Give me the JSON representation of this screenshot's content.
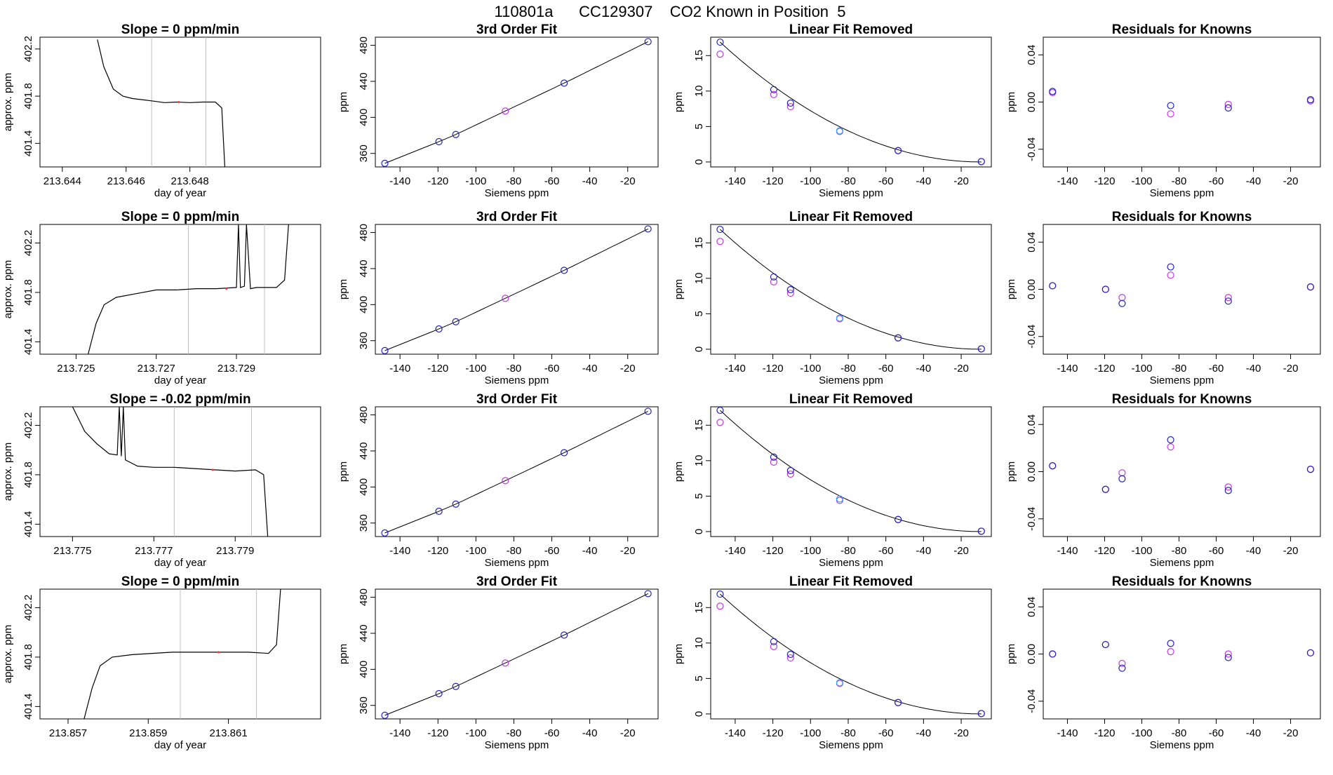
{
  "figure_title": "110801a      CC129307    CO2 Known in Position  5",
  "colors": {
    "line": "#000000",
    "vline": "#bebebe",
    "blue": "#2222bb",
    "magenta": "#c038e0",
    "cyan": "#2aa3ff",
    "pink": "#ff3333"
  },
  "chart_data": [
    {
      "type": "line",
      "title": "Slope =  0  ppm/min",
      "xlabel": "day of year",
      "ylabel": "approx. ppm",
      "xlim": [
        213.6433,
        213.6521
      ],
      "ylim": [
        401.2,
        402.3
      ],
      "xticks": [
        "213.644",
        "213.646",
        "213.648"
      ],
      "yticks": [
        "401.4",
        "401.8",
        "402.2"
      ],
      "vlines": [
        213.6468,
        213.6485
      ],
      "x": [
        213.6451,
        213.6453,
        213.6456,
        213.6459,
        213.6462,
        213.6465,
        213.6468,
        213.6472,
        213.6476,
        213.648,
        213.6484,
        213.6488,
        213.649,
        213.6491
      ],
      "y": [
        402.28,
        402.05,
        401.86,
        401.8,
        401.78,
        401.77,
        401.76,
        401.745,
        401.75,
        401.745,
        401.75,
        401.75,
        401.7,
        401.18
      ]
    },
    {
      "type": "scatter",
      "title": "3rd Order Fit",
      "xlabel": "Siemens ppm",
      "ylabel": "ppm",
      "xlim": [
        -153,
        -4
      ],
      "ylim": [
        345,
        489
      ],
      "xticks": [
        "-140",
        "-120",
        "-100",
        "-80",
        "-60",
        "-40",
        "-20"
      ],
      "yticks": [
        "360",
        "400",
        "440",
        "480"
      ],
      "x": [
        -148,
        -119.5,
        -110.6,
        -84.5,
        -53.5,
        -9.3
      ],
      "y": [
        349,
        373,
        381,
        407,
        438,
        484
      ]
    },
    {
      "type": "scatter",
      "title": "Linear Fit Removed",
      "xlabel": "Siemens ppm",
      "ylabel": "ppm",
      "xlim": [
        -153,
        -4
      ],
      "ylim": [
        -0.7,
        17.6
      ],
      "xticks": [
        "-140",
        "-120",
        "-100",
        "-80",
        "-60",
        "-40",
        "-20"
      ],
      "yticks": [
        "0",
        "5",
        "10",
        "15"
      ],
      "x": [
        -148,
        -119.5,
        -110.6,
        -84.5,
        -53.5,
        -9.3
      ],
      "y_blue": [
        16.9,
        10.2,
        8.3,
        4.4,
        1.6,
        0.05
      ],
      "y_magenta": [
        15.2,
        9.5,
        7.8,
        4.3,
        1.6,
        0.05
      ]
    },
    {
      "type": "scatter",
      "title": "Residuals for Knowns",
      "xlabel": "Siemens ppm",
      "ylabel": "ppm",
      "xlim": [
        -153,
        -4
      ],
      "ylim": [
        -0.055,
        0.055
      ],
      "xticks": [
        "-140",
        "-120",
        "-100",
        "-80",
        "-60",
        "-40",
        "-20"
      ],
      "yticks": [
        "-0.04",
        "0.00",
        "0.04"
      ],
      "x": [
        -148,
        -84.5,
        -53.5,
        -9.3
      ],
      "y_blue": [
        0.009,
        -0.003,
        -0.005,
        0.002
      ],
      "y_magenta": [
        0.008,
        -0.01,
        -0.002,
        0.001
      ]
    },
    {
      "type": "line",
      "title": "Slope =  0  ppm/min",
      "xlabel": "day of year",
      "ylabel": "approx. ppm",
      "xlim": [
        213.7241,
        213.7311
      ],
      "ylim": [
        401.3,
        402.35
      ],
      "xticks": [
        "213.725",
        "213.727",
        "213.729"
      ],
      "yticks": [
        "401.4",
        "401.8",
        "402.2"
      ],
      "vlines": [
        213.7278,
        213.7297
      ],
      "x": [
        213.7253,
        213.7255,
        213.7257,
        213.726,
        213.7265,
        213.727,
        213.7275,
        213.728,
        213.7285,
        213.729,
        213.72905,
        213.7291,
        213.7292,
        213.72925,
        213.72935,
        213.7295,
        213.73,
        213.7302,
        213.7303
      ],
      "y": [
        401.3,
        401.55,
        401.7,
        401.76,
        401.79,
        401.82,
        401.82,
        401.83,
        401.83,
        401.84,
        402.35,
        401.84,
        401.85,
        402.35,
        401.83,
        401.84,
        401.84,
        401.9,
        402.35
      ]
    },
    {
      "type": "scatter",
      "title": "3rd Order Fit",
      "xlabel": "Siemens ppm",
      "ylabel": "ppm",
      "xlim": [
        -153,
        -4
      ],
      "ylim": [
        345,
        489
      ],
      "xticks": [
        "-140",
        "-120",
        "-100",
        "-80",
        "-60",
        "-40",
        "-20"
      ],
      "yticks": [
        "360",
        "400",
        "440",
        "480"
      ],
      "x": [
        -148,
        -119.5,
        -110.6,
        -84.5,
        -53.5,
        -9.3
      ],
      "y": [
        349,
        373,
        381,
        407,
        438,
        484
      ]
    },
    {
      "type": "scatter",
      "title": "Linear Fit Removed",
      "xlabel": "Siemens ppm",
      "ylabel": "ppm",
      "xlim": [
        -153,
        -4
      ],
      "ylim": [
        -0.7,
        17.6
      ],
      "xticks": [
        "-140",
        "-120",
        "-100",
        "-80",
        "-60",
        "-40",
        "-20"
      ],
      "yticks": [
        "0",
        "5",
        "10",
        "15"
      ],
      "x": [
        -148,
        -119.5,
        -110.6,
        -84.5,
        -53.5,
        -9.3
      ],
      "y_blue": [
        16.9,
        10.2,
        8.4,
        4.4,
        1.6,
        0.05
      ],
      "y_magenta": [
        15.2,
        9.5,
        7.9,
        4.3,
        1.6,
        0.05
      ]
    },
    {
      "type": "scatter",
      "title": "Residuals for Knowns",
      "xlabel": "Siemens ppm",
      "ylabel": "ppm",
      "xlim": [
        -153,
        -4
      ],
      "ylim": [
        -0.055,
        0.055
      ],
      "xticks": [
        "-140",
        "-120",
        "-100",
        "-80",
        "-60",
        "-40",
        "-20"
      ],
      "yticks": [
        "-0.04",
        "0.00",
        "0.04"
      ],
      "x": [
        -148,
        -119.5,
        -110.6,
        -84.5,
        -53.5,
        -9.3
      ],
      "y_blue": [
        0.003,
        0.0,
        -0.012,
        0.019,
        -0.01,
        0.002
      ],
      "y_magenta": [
        0.003,
        0.0,
        -0.007,
        0.012,
        -0.007,
        0.002
      ]
    },
    {
      "type": "line",
      "title": "Slope =  -0.02  ppm/min",
      "xlabel": "day of year",
      "ylabel": "approx. ppm",
      "xlim": [
        213.7742,
        213.7811
      ],
      "ylim": [
        401.3,
        402.35
      ],
      "xticks": [
        "213.775",
        "213.777",
        "213.779"
      ],
      "yticks": [
        "401.4",
        "401.8",
        "402.2"
      ],
      "vlines": [
        213.7775,
        213.7794
      ],
      "x": [
        213.775,
        213.7753,
        213.7756,
        213.7759,
        213.7761,
        213.77615,
        213.7762,
        213.77625,
        213.7763,
        213.7766,
        213.777,
        213.7775,
        213.778,
        213.7785,
        213.779,
        213.7795,
        213.7797,
        213.7798
      ],
      "y": [
        402.35,
        402.15,
        402.05,
        401.97,
        401.96,
        402.35,
        401.95,
        402.35,
        401.92,
        401.87,
        401.86,
        401.86,
        401.85,
        401.84,
        401.83,
        401.84,
        401.8,
        401.3
      ]
    },
    {
      "type": "scatter",
      "title": "3rd Order Fit",
      "xlabel": "Siemens ppm",
      "ylabel": "ppm",
      "xlim": [
        -153,
        -4
      ],
      "ylim": [
        345,
        489
      ],
      "xticks": [
        "-140",
        "-120",
        "-100",
        "-80",
        "-60",
        "-40",
        "-20"
      ],
      "yticks": [
        "360",
        "400",
        "440",
        "480"
      ],
      "x": [
        -148,
        -119.5,
        -110.6,
        -84.5,
        -53.5,
        -9.3
      ],
      "y": [
        349,
        373,
        381,
        407,
        438,
        484
      ]
    },
    {
      "type": "scatter",
      "title": "Linear Fit Removed",
      "xlabel": "Siemens ppm",
      "ylabel": "ppm",
      "xlim": [
        -153,
        -4
      ],
      "ylim": [
        -0.7,
        17.6
      ],
      "xticks": [
        "-140",
        "-120",
        "-100",
        "-80",
        "-60",
        "-40",
        "-20"
      ],
      "yticks": [
        "0",
        "5",
        "10",
        "15"
      ],
      "x": [
        -148,
        -119.5,
        -110.6,
        -84.5,
        -53.5,
        -9.3
      ],
      "y_blue": [
        17.1,
        10.5,
        8.6,
        4.6,
        1.7,
        0.05
      ],
      "y_magenta": [
        15.4,
        9.8,
        8.1,
        4.4,
        1.7,
        0.05
      ]
    },
    {
      "type": "scatter",
      "title": "Residuals for Knowns",
      "xlabel": "Siemens ppm",
      "ylabel": "ppm",
      "xlim": [
        -153,
        -4
      ],
      "ylim": [
        -0.055,
        0.055
      ],
      "xticks": [
        "-140",
        "-120",
        "-100",
        "-80",
        "-60",
        "-40",
        "-20"
      ],
      "yticks": [
        "-0.04",
        "0.00",
        "0.04"
      ],
      "x": [
        -148,
        -119.5,
        -110.6,
        -84.5,
        -53.5,
        -9.3
      ],
      "y_blue": [
        0.005,
        -0.015,
        -0.006,
        0.027,
        -0.016,
        0.002
      ],
      "y_magenta": [
        0.005,
        -0.015,
        -0.001,
        0.021,
        -0.013,
        0.002
      ]
    },
    {
      "type": "line",
      "title": "Slope =  0  ppm/min",
      "xlabel": "day of year",
      "ylabel": "approx. ppm",
      "xlim": [
        213.8563,
        213.8633
      ],
      "ylim": [
        401.3,
        402.35
      ],
      "xticks": [
        "213.857",
        "213.859",
        "213.861"
      ],
      "yticks": [
        "401.4",
        "401.8",
        "402.2"
      ],
      "vlines": [
        213.8598,
        213.8617
      ],
      "x": [
        213.8574,
        213.8576,
        213.8578,
        213.8581,
        213.8586,
        213.8591,
        213.8596,
        213.86,
        213.8605,
        213.861,
        213.8615,
        213.862,
        213.8622,
        213.8623
      ],
      "y": [
        401.3,
        401.55,
        401.73,
        401.8,
        401.82,
        401.83,
        401.84,
        401.84,
        401.84,
        401.84,
        401.84,
        401.83,
        401.9,
        402.35
      ]
    },
    {
      "type": "scatter",
      "title": "3rd Order Fit",
      "xlabel": "Siemens ppm",
      "ylabel": "ppm",
      "xlim": [
        -153,
        -4
      ],
      "ylim": [
        345,
        489
      ],
      "xticks": [
        "-140",
        "-120",
        "-100",
        "-80",
        "-60",
        "-40",
        "-20"
      ],
      "yticks": [
        "360",
        "400",
        "440",
        "480"
      ],
      "x": [
        -148,
        -119.5,
        -110.6,
        -84.5,
        -53.5,
        -9.3
      ],
      "y": [
        349,
        373,
        381,
        407,
        438,
        484
      ]
    },
    {
      "type": "scatter",
      "title": "Linear Fit Removed",
      "xlabel": "Siemens ppm",
      "ylabel": "ppm",
      "xlim": [
        -153,
        -4
      ],
      "ylim": [
        -0.7,
        17.6
      ],
      "xticks": [
        "-140",
        "-120",
        "-100",
        "-80",
        "-60",
        "-40",
        "-20"
      ],
      "yticks": [
        "0",
        "5",
        "10",
        "15"
      ],
      "x": [
        -148,
        -119.5,
        -110.6,
        -84.5,
        -53.5,
        -9.3
      ],
      "y_blue": [
        16.9,
        10.2,
        8.4,
        4.4,
        1.6,
        0.05
      ],
      "y_magenta": [
        15.2,
        9.5,
        7.9,
        4.3,
        1.6,
        0.05
      ]
    },
    {
      "type": "scatter",
      "title": "Residuals for Knowns",
      "xlabel": "Siemens ppm",
      "ylabel": "ppm",
      "xlim": [
        -153,
        -4
      ],
      "ylim": [
        -0.055,
        0.055
      ],
      "xticks": [
        "-140",
        "-120",
        "-100",
        "-80",
        "-60",
        "-40",
        "-20"
      ],
      "yticks": [
        "-0.04",
        "0.00",
        "0.04"
      ],
      "x": [
        -148,
        -119.5,
        -110.6,
        -84.5,
        -53.5,
        -9.3
      ],
      "y_blue": [
        0.0,
        0.008,
        -0.012,
        0.009,
        -0.003,
        0.001
      ],
      "y_magenta": [
        0.0,
        0.008,
        -0.008,
        0.002,
        0.0,
        0.001
      ]
    }
  ]
}
